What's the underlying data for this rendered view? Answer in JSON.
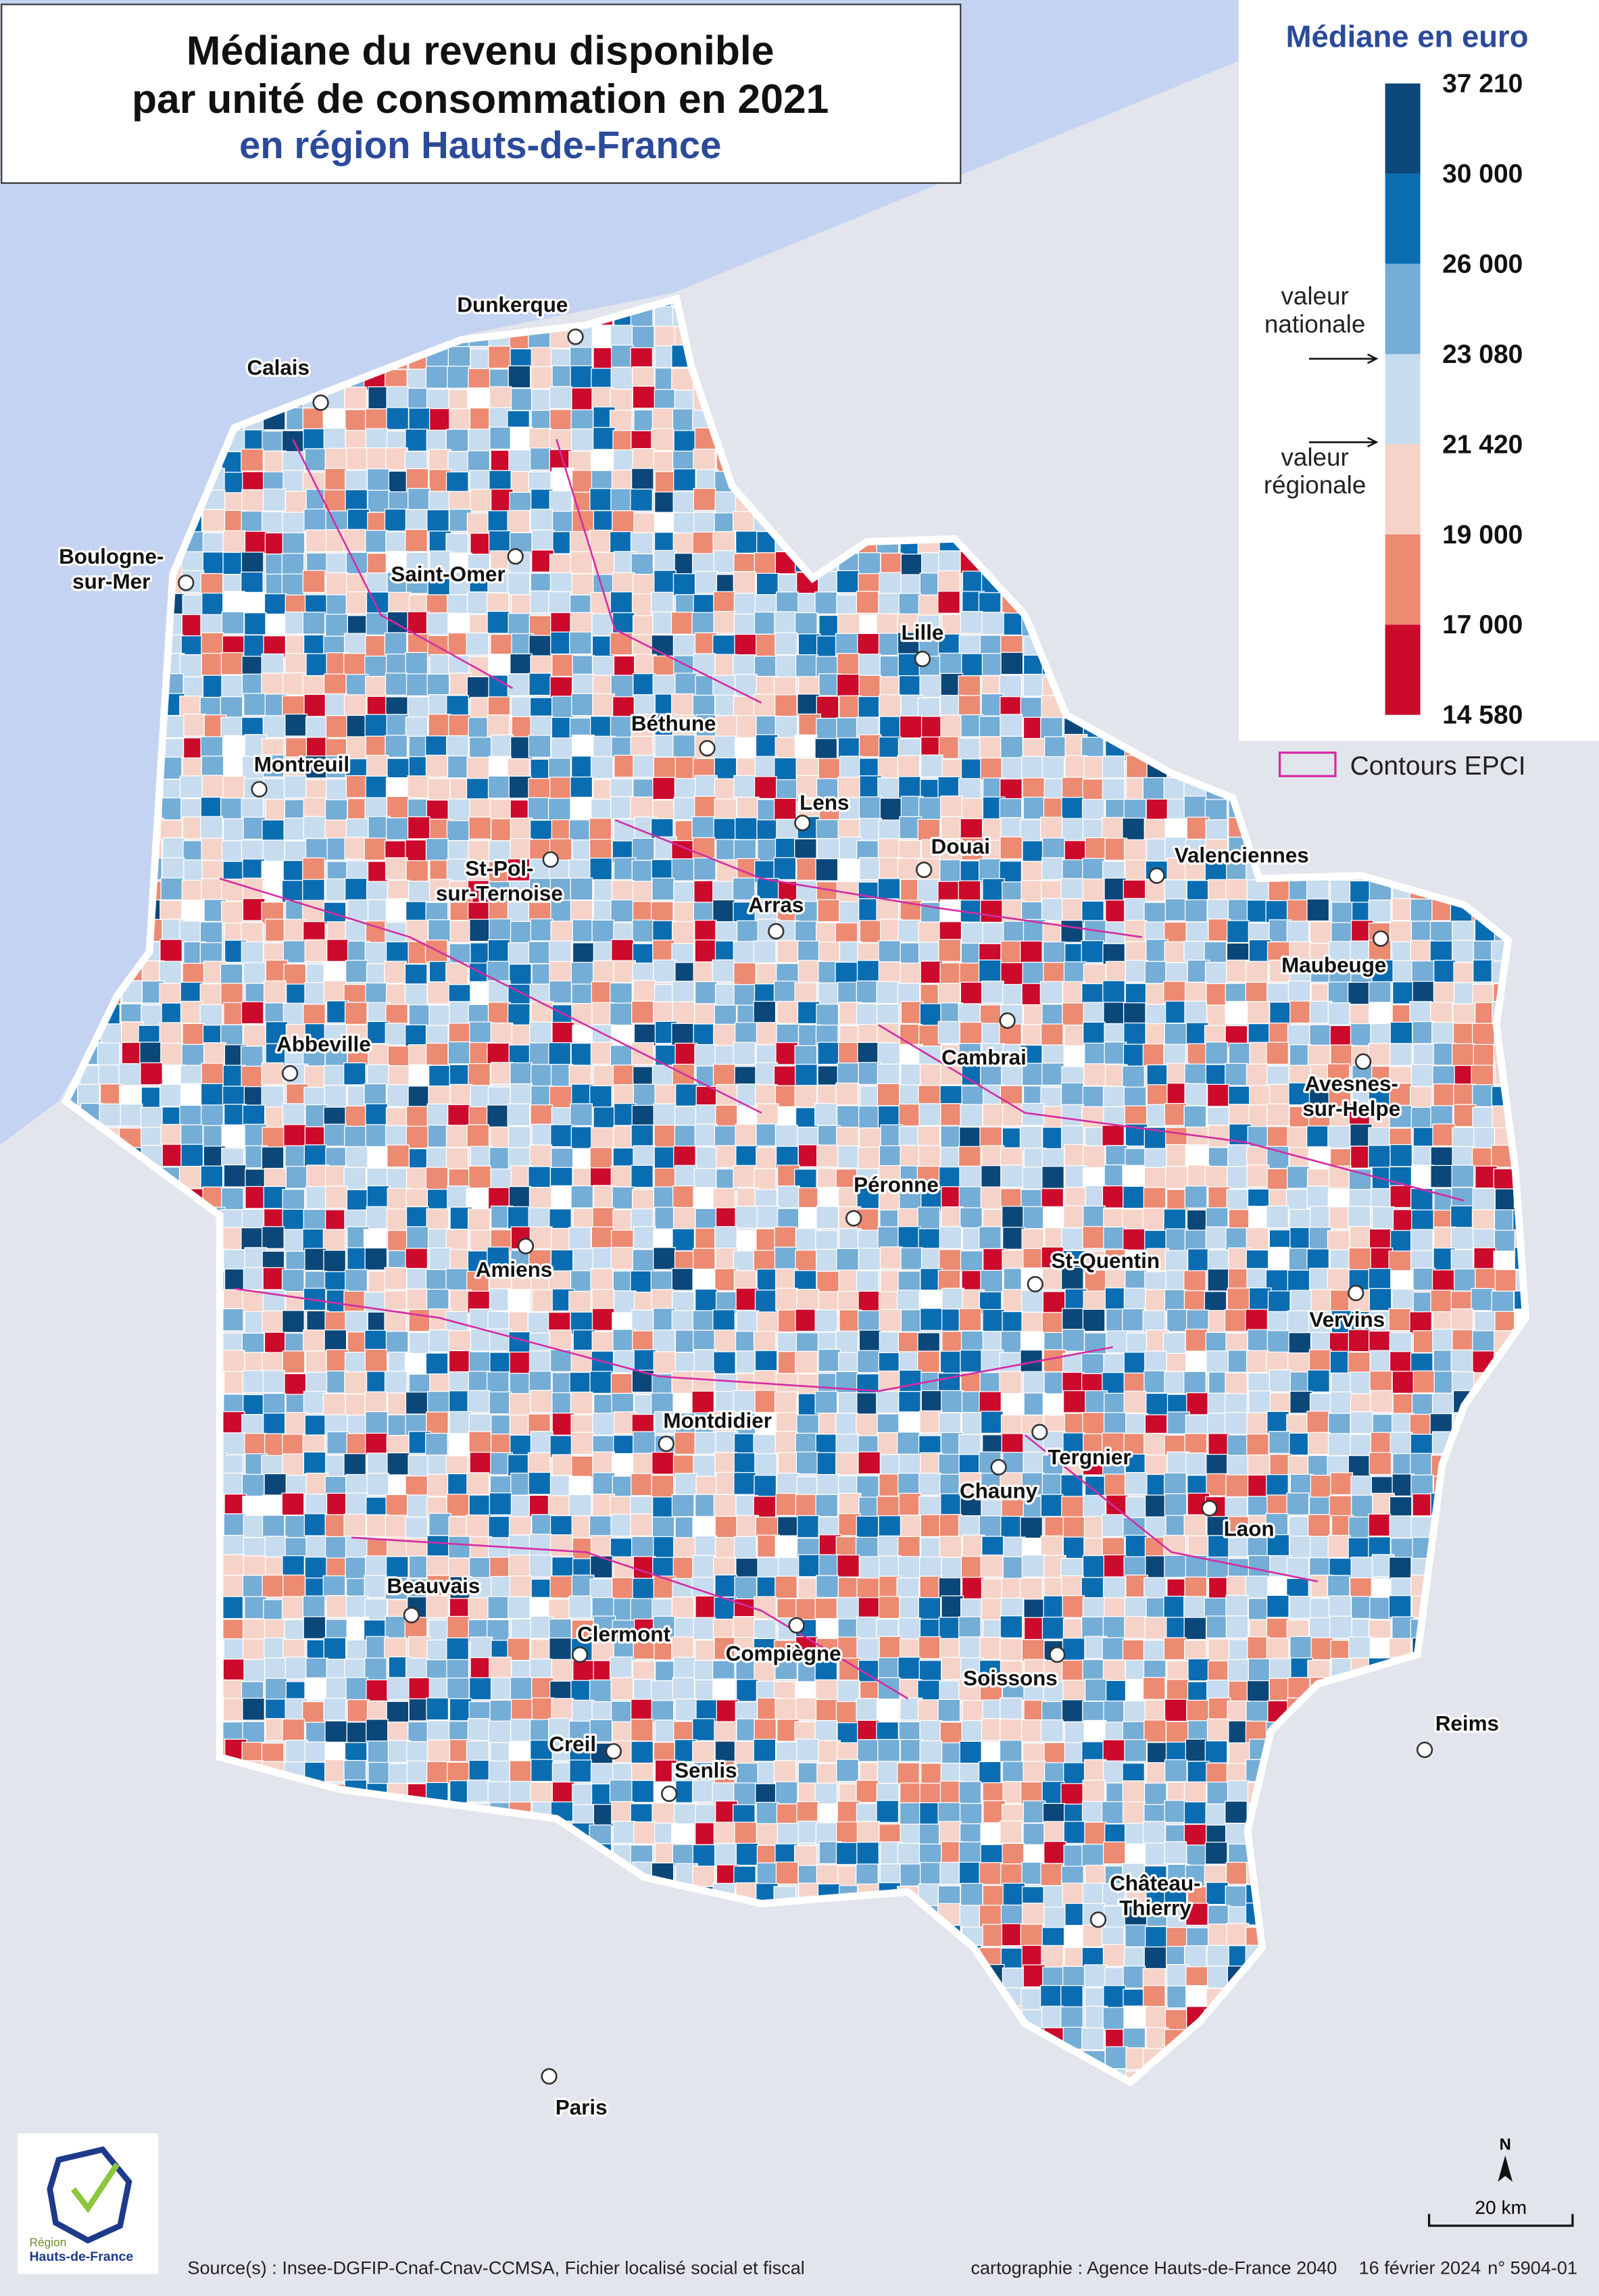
{
  "title": {
    "line1": "Médiane du revenu disponible",
    "line2": "par unité de consommation en 2021",
    "line3": "en région Hauts-de-France"
  },
  "legend": {
    "title": "Médiane en euro",
    "breaks": [
      "37 210",
      "30 000",
      "26 000",
      "23 080",
      "21 420",
      "19 000",
      "17 000",
      "14 580"
    ],
    "colors": [
      "#0b4779",
      "#0a6db2",
      "#74add6",
      "#c7dcee",
      "#f6d3c8",
      "#ec8a72",
      "#cb0a2c"
    ],
    "national": [
      "valeur",
      "nationale"
    ],
    "regional": [
      "valeur",
      "régionale"
    ],
    "epci": "Contours EPCI"
  },
  "cities": [
    {
      "label": [
        "Dunkerque"
      ]
    },
    {
      "label": [
        "Calais"
      ]
    },
    {
      "label": [
        "Boulogne-",
        "sur-Mer"
      ]
    },
    {
      "label": [
        "Saint-Omer"
      ]
    },
    {
      "label": [
        "Lille"
      ]
    },
    {
      "label": [
        "Béthune"
      ]
    },
    {
      "label": [
        "Montreuil"
      ]
    },
    {
      "label": [
        "Lens"
      ]
    },
    {
      "label": [
        "Douai"
      ]
    },
    {
      "label": [
        "Valenciennes"
      ]
    },
    {
      "label": [
        "St-Pol-",
        "sur-Ternoise"
      ]
    },
    {
      "label": [
        "Arras"
      ]
    },
    {
      "label": [
        "Maubeuge"
      ]
    },
    {
      "label": [
        "Abbeville"
      ]
    },
    {
      "label": [
        "Cambrai"
      ]
    },
    {
      "label": [
        "Avesnes-",
        "sur-Helpe"
      ]
    },
    {
      "label": [
        "Péronne"
      ]
    },
    {
      "label": [
        "Amiens"
      ]
    },
    {
      "label": [
        "St-Quentin"
      ]
    },
    {
      "label": [
        "Vervins"
      ]
    },
    {
      "label": [
        "Montdidier"
      ]
    },
    {
      "label": [
        "Tergnier"
      ]
    },
    {
      "label": [
        "Chauny"
      ]
    },
    {
      "label": [
        "Laon"
      ]
    },
    {
      "label": [
        "Beauvais"
      ]
    },
    {
      "label": [
        "Clermont"
      ]
    },
    {
      "label": [
        "Compiègne"
      ]
    },
    {
      "label": [
        "Soissons"
      ]
    },
    {
      "label": [
        "Reims"
      ]
    },
    {
      "label": [
        "Creil"
      ]
    },
    {
      "label": [
        "Senlis"
      ]
    },
    {
      "label": [
        "Château-",
        "Thierry"
      ]
    },
    {
      "label": [
        "Paris"
      ]
    }
  ],
  "north": "N",
  "scale": "20 km",
  "logo": [
    "Région",
    "Hauts-de-France"
  ],
  "source": "Source(s) : Insee-DGFIP-Cnaf-Cnav-CCMSA, Fichier localisé social et fiscal",
  "credit": "cartographie : Agence Hauts-de-France 2040",
  "date": "16 février 2024",
  "ref": "n° 5904-01"
}
